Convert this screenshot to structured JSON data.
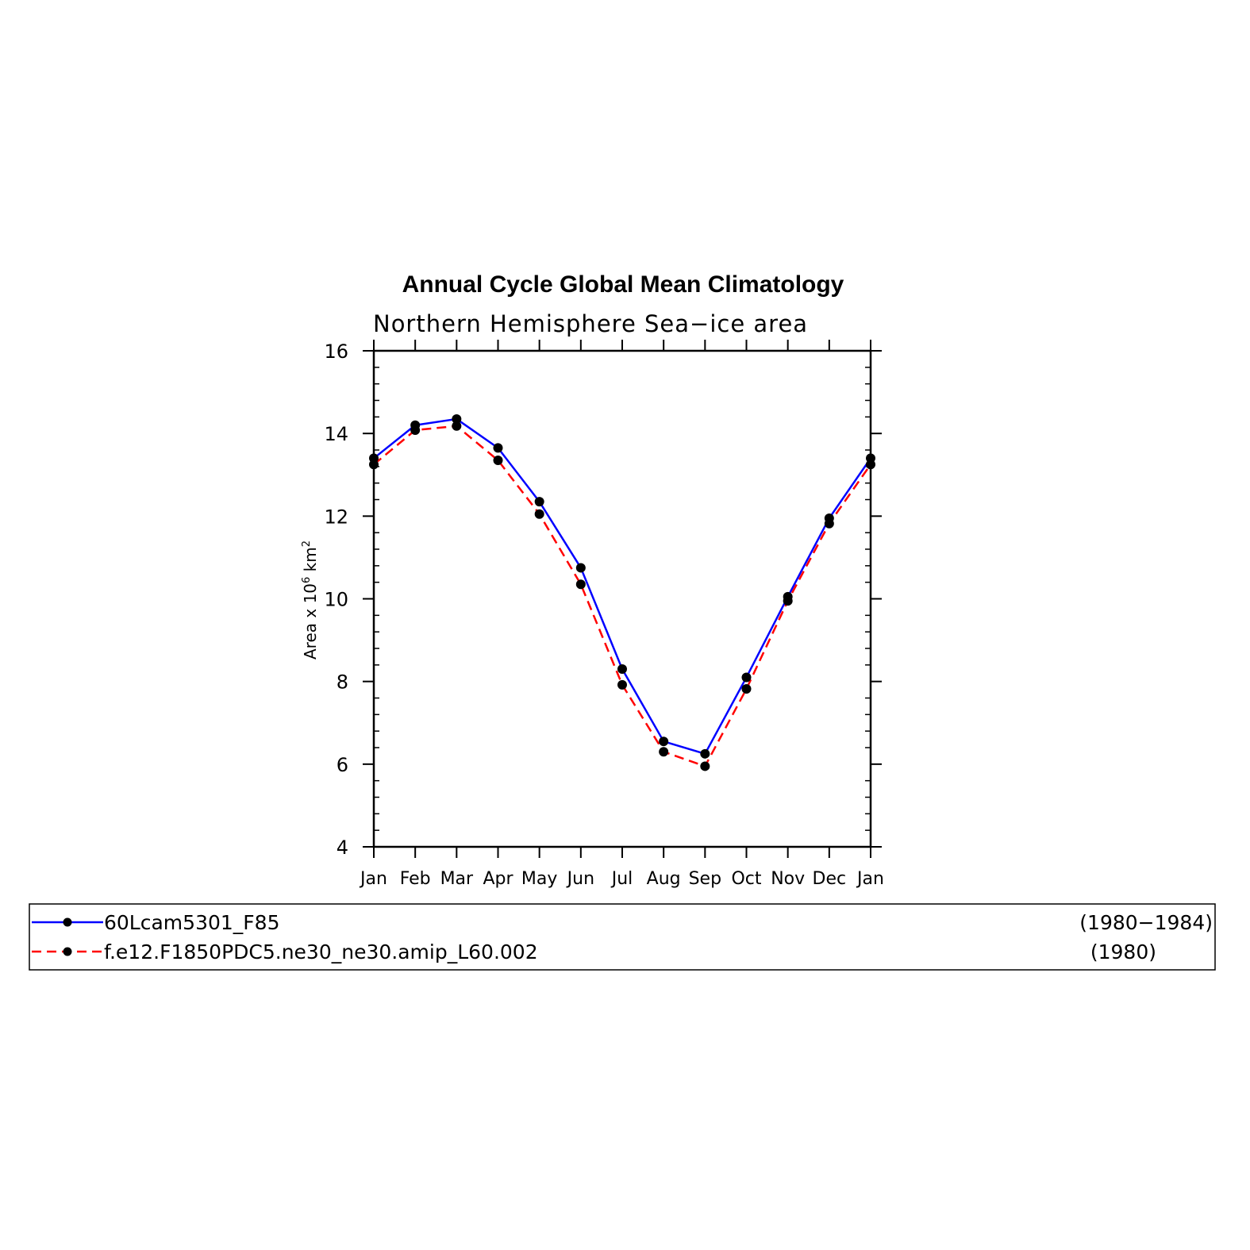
{
  "chart_data": {
    "type": "line",
    "title": "Annual Cycle Global Mean Climatology",
    "subtitle": "Northern Hemisphere Sea−ice area",
    "ylabel_parts": [
      "Area x 10",
      "6",
      " km",
      "2"
    ],
    "ylim": [
      4,
      16
    ],
    "yticks": [
      4,
      6,
      8,
      10,
      12,
      14,
      16
    ],
    "categories": [
      "Jan",
      "Feb",
      "Mar",
      "Apr",
      "May",
      "Jun",
      "Jul",
      "Aug",
      "Sep",
      "Oct",
      "Nov",
      "Dec",
      "Jan"
    ],
    "grid": false,
    "legend_position": "bottom",
    "series": [
      {
        "name": "60Lcam5301_F85",
        "period": "(1980−1984)",
        "color": "#0000ff",
        "dash": "solid",
        "marker": "filled-circle",
        "values": [
          13.4,
          14.2,
          14.35,
          13.65,
          12.35,
          10.75,
          8.3,
          6.55,
          6.25,
          8.1,
          10.05,
          11.95,
          13.4
        ]
      },
      {
        "name": "f.e12.F1850PDC5.ne30_ne30.amip_L60.002",
        "period": "(1980)",
        "color": "#ff0000",
        "dash": "dashed",
        "marker": "filled-circle",
        "values": [
          13.25,
          14.08,
          14.18,
          13.35,
          12.05,
          10.35,
          7.92,
          6.3,
          5.95,
          7.82,
          9.95,
          11.82,
          13.25
        ]
      }
    ]
  },
  "colors": {
    "axis": "#000000",
    "marker": "#000000"
  }
}
